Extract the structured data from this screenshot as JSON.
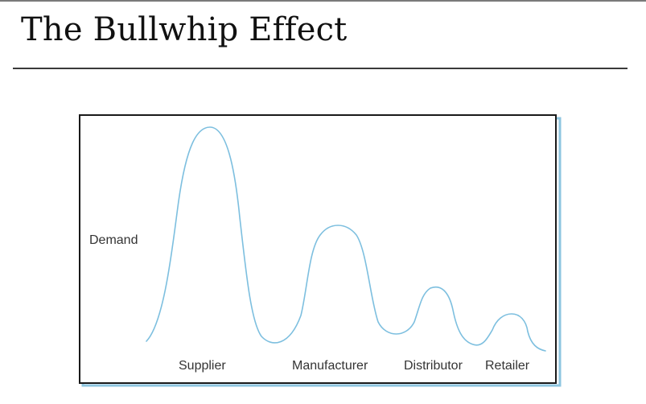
{
  "slide": {
    "title": "The Bullwhip Effect"
  },
  "diagram": {
    "y_label": "Demand",
    "stages": [
      "Supplier",
      "Manufacturer",
      "Distributor",
      "Retailer"
    ],
    "colors": {
      "curve": "#7dbfdf",
      "frame": "#1a1a1a",
      "frame_shadow": "#8ec6e0"
    }
  }
}
